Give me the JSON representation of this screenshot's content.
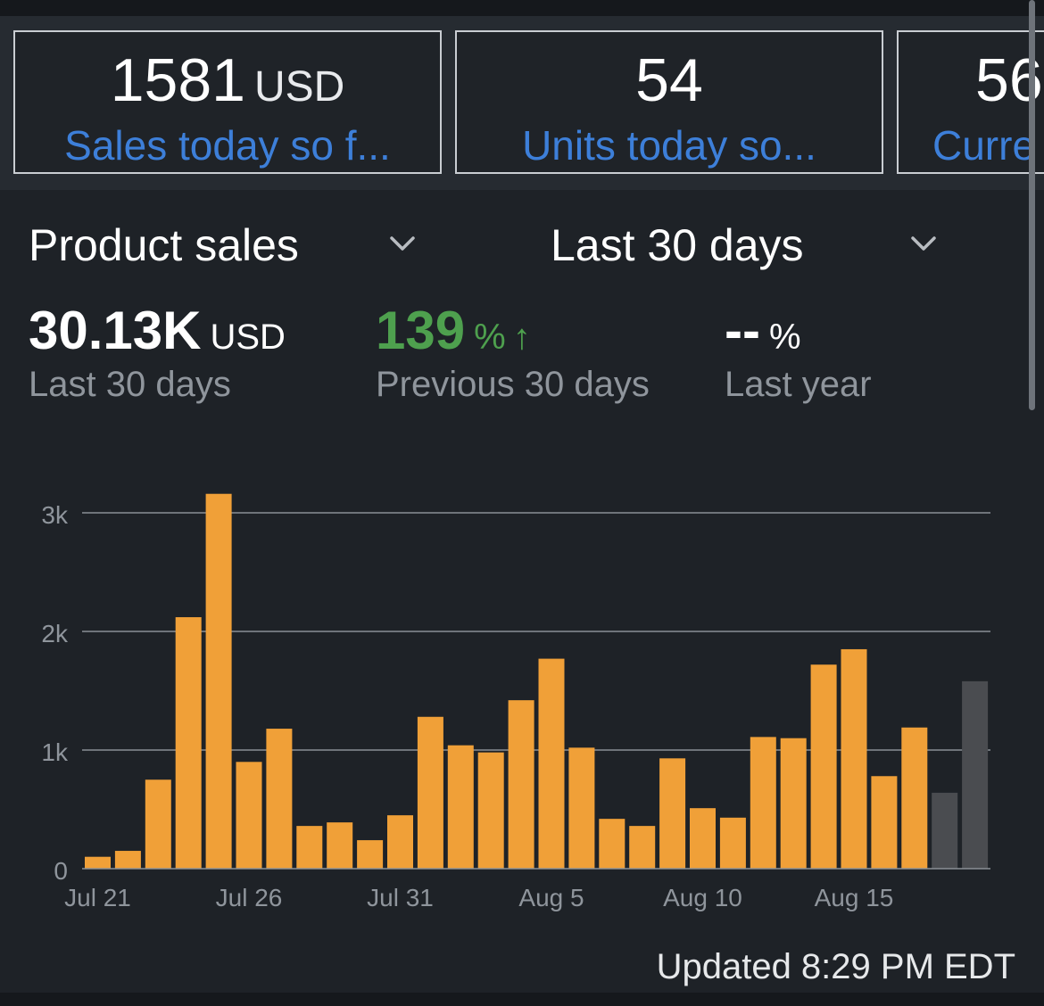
{
  "summary_cards": [
    {
      "value": "1581",
      "unit": "USD",
      "label": "Sales today so f..."
    },
    {
      "value": "54",
      "unit": "",
      "label": "Units today so..."
    },
    {
      "value": "56",
      "unit": "",
      "label": "Curre"
    }
  ],
  "selectors": {
    "metric": "Product sales",
    "range": "Last 30 days"
  },
  "metrics": {
    "total": {
      "value": "30.13K",
      "unit": "USD",
      "label": "Last 30 days"
    },
    "previous": {
      "value": "139",
      "unit": "%",
      "arrow": "↑",
      "label": "Previous 30 days",
      "color": "#4ea04e"
    },
    "last_year": {
      "value": "--",
      "unit": "%",
      "label": "Last year"
    }
  },
  "updated": "Updated 8:29 PM EDT",
  "colors": {
    "bar": "#f0a038",
    "bar_partial": "#4a4c50",
    "grid": "#8a8f96",
    "axis_text": "#8f959c"
  },
  "chart_data": {
    "type": "bar",
    "title": "",
    "xlabel": "",
    "ylabel": "",
    "ylim": [
      0,
      3160
    ],
    "y_ticks": [
      {
        "value": 0,
        "label": "0"
      },
      {
        "value": 1000,
        "label": "1k"
      },
      {
        "value": 2000,
        "label": "2k"
      },
      {
        "value": 3000,
        "label": "3k"
      }
    ],
    "x_tick_labels": [
      {
        "index": 0,
        "label": "Jul 21"
      },
      {
        "index": 5,
        "label": "Jul 26"
      },
      {
        "index": 10,
        "label": "Jul 31"
      },
      {
        "index": 15,
        "label": "Aug 5"
      },
      {
        "index": 20,
        "label": "Aug 10"
      },
      {
        "index": 25,
        "label": "Aug 15"
      }
    ],
    "categories": [
      "Jul 21",
      "Jul 22",
      "Jul 23",
      "Jul 24",
      "Jul 25",
      "Jul 26",
      "Jul 27",
      "Jul 28",
      "Jul 29",
      "Jul 30",
      "Jul 31",
      "Aug 1",
      "Aug 2",
      "Aug 3",
      "Aug 4",
      "Aug 5",
      "Aug 6",
      "Aug 7",
      "Aug 8",
      "Aug 9",
      "Aug 10",
      "Aug 11",
      "Aug 12",
      "Aug 13",
      "Aug 14",
      "Aug 15",
      "Aug 16",
      "Aug 17",
      "Aug 18",
      "Aug 19",
      "Aug 20"
    ],
    "values": [
      100,
      150,
      750,
      2120,
      3160,
      900,
      1180,
      360,
      390,
      240,
      450,
      1280,
      1040,
      980,
      1420,
      1770,
      1020,
      420,
      360,
      930,
      510,
      430,
      1110,
      1100,
      1720,
      1850,
      780,
      1190,
      640,
      1580,
      0
    ],
    "partial_indices": [
      28,
      29
    ],
    "grid": true,
    "legend": "none"
  }
}
